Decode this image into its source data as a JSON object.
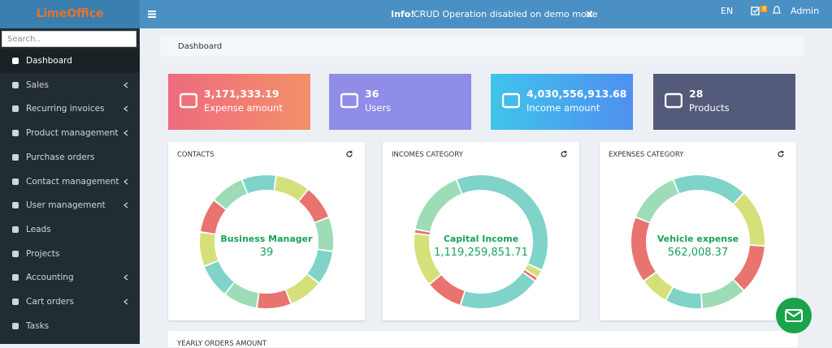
{
  "header": {
    "logo": "LimeOffice",
    "info_label": "Info!",
    "info_text": "CRUD Operation disabled on demo mode",
    "language": "EN",
    "badge": "3",
    "user": "Admin"
  },
  "sidebar": {
    "search_placeholder": "Search..",
    "menu": [
      {
        "label": "Dashboard",
        "submenu": false
      },
      {
        "label": "Sales",
        "submenu": true
      },
      {
        "label": "Recurring invoices",
        "submenu": true
      },
      {
        "label": "Product management",
        "submenu": true
      },
      {
        "label": "Purchase orders",
        "submenu": false
      },
      {
        "label": "Contact management",
        "submenu": true
      },
      {
        "label": "User management",
        "submenu": true
      },
      {
        "label": "Leads",
        "submenu": false
      },
      {
        "label": "Projects",
        "submenu": false
      },
      {
        "label": "Accounting",
        "submenu": true
      },
      {
        "label": "Cart orders",
        "submenu": true
      },
      {
        "label": "Tasks",
        "submenu": false
      }
    ]
  },
  "breadcrumb": "Dashboard",
  "stats": [
    {
      "value": "3,171,333.19",
      "label": "Expense amount"
    },
    {
      "value": "36",
      "label": "Users"
    },
    {
      "value": "4,030,556,913.68",
      "label": "Income amount"
    },
    {
      "value": "28",
      "label": "Products"
    }
  ],
  "widgets": [
    {
      "title": "CONTACTS",
      "center_label": "Business Manager",
      "center_value": "39",
      "segment_values": [
        1,
        1,
        1,
        1,
        1,
        1,
        1,
        1,
        1,
        1,
        1,
        1
      ],
      "segment_colors": [
        "#7fd3c9",
        "#d6e07a",
        "#e8736f",
        "#9ddcb6",
        "#7fd3c9",
        "#d6e07a",
        "#e8736f",
        "#9ddcb6",
        "#7fd3c9",
        "#d6e07a",
        "#e8736f",
        "#9ddcb6"
      ]
    },
    {
      "title": "INCOMES CATEGORY",
      "center_label": "Capital Income",
      "center_value": "1,119,259,851.71",
      "segment_values": [
        38,
        2,
        1,
        20,
        9,
        13,
        1,
        16
      ],
      "segment_colors": [
        "#7fd3c9",
        "#d6e07a",
        "#e8736f",
        "#7fd3c9",
        "#e8736f",
        "#d6e07a",
        "#e8736f",
        "#9ddcb6"
      ]
    },
    {
      "title": "EXPENSES CATEGORY",
      "center_label": "Vehicle expense",
      "center_value": "562,008.37",
      "segment_values": [
        18,
        14,
        12,
        11,
        9,
        7,
        16,
        13
      ],
      "segment_colors": [
        "#7fd3c9",
        "#d6e07a",
        "#e8736f",
        "#9ddcb6",
        "#7fd3c9",
        "#d6e07a",
        "#e8736f",
        "#9ddcb6"
      ]
    }
  ],
  "bottom_panel_title": "YEARLY ORDERS AMOUNT"
}
